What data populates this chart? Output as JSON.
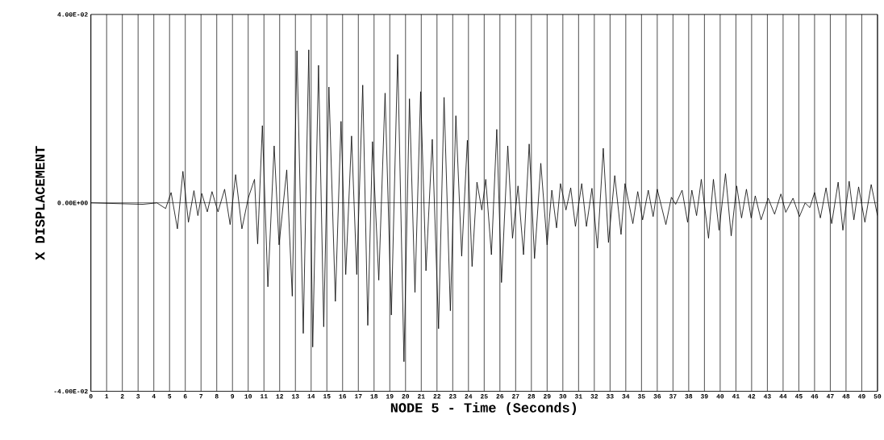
{
  "chart_data": {
    "type": "line",
    "xlabel": "NODE 5 - Time (Seconds)",
    "ylabel": "X DISPLACEMENT",
    "xlim": [
      0,
      50
    ],
    "ylim": [
      -0.04,
      0.04
    ],
    "xticks": [
      0,
      1,
      2,
      3,
      4,
      5,
      6,
      7,
      8,
      9,
      10,
      11,
      12,
      13,
      14,
      15,
      16,
      17,
      18,
      19,
      20,
      21,
      22,
      23,
      24,
      25,
      26,
      27,
      28,
      29,
      30,
      31,
      32,
      33,
      34,
      35,
      36,
      37,
      38,
      39,
      40,
      41,
      42,
      43,
      44,
      45,
      46,
      47,
      48,
      49,
      50
    ],
    "yticks": [
      {
        "value": -0.04,
        "label": "-4.00E-02"
      },
      {
        "value": 0,
        "label": "0.00E+00"
      },
      {
        "value": 0.04,
        "label": "4.00E-02"
      }
    ],
    "grid": "x",
    "line_style": "solid",
    "marker": "none",
    "ref_lines": [
      {
        "axis": "y",
        "value": 0,
        "color": "#000000"
      }
    ],
    "series": [
      {
        "color": "#000000",
        "x": [
          0,
          3.3,
          4.2,
          4.75,
          5.1,
          5.5,
          5.85,
          6.2,
          6.55,
          6.8,
          7.05,
          7.4,
          7.7,
          8.08,
          8.5,
          8.85,
          9.2,
          9.6,
          10.0,
          10.4,
          10.6,
          10.9,
          11.25,
          11.65,
          11.96,
          12.45,
          12.8,
          13.1,
          13.5,
          13.85,
          14.1,
          14.47,
          14.8,
          15.13,
          15.54,
          15.9,
          16.2,
          16.57,
          16.9,
          17.28,
          17.6,
          17.9,
          18.3,
          18.7,
          19.1,
          19.5,
          19.9,
          20.25,
          20.6,
          20.96,
          21.3,
          21.7,
          22.1,
          22.45,
          22.85,
          23.2,
          23.57,
          23.93,
          24.23,
          24.54,
          24.85,
          25.1,
          25.46,
          25.8,
          26.1,
          26.5,
          26.8,
          27.15,
          27.5,
          27.86,
          28.2,
          28.6,
          29.0,
          29.3,
          29.6,
          29.85,
          30.2,
          30.5,
          30.8,
          31.2,
          31.5,
          31.85,
          32.2,
          32.57,
          32.9,
          33.3,
          33.7,
          33.95,
          34.45,
          34.76,
          35.07,
          35.43,
          35.74,
          36.0,
          36.55,
          36.9,
          37.17,
          37.58,
          37.93,
          38.2,
          38.5,
          38.8,
          39.26,
          39.57,
          39.93,
          40.34,
          40.7,
          41.05,
          41.36,
          41.67,
          41.97,
          42.23,
          42.6,
          43.05,
          43.46,
          43.86,
          44.17,
          44.63,
          45.04,
          45.4,
          45.7,
          46.0,
          46.37,
          46.73,
          47.09,
          47.5,
          47.8,
          48.2,
          48.5,
          48.8,
          49.2,
          49.6,
          50.0
        ],
        "values": [
          0,
          -0.0003,
          0,
          -0.0012,
          0.0022,
          -0.0055,
          0.0067,
          -0.0041,
          0.0026,
          -0.0027,
          0.002,
          -0.0019,
          0.0024,
          -0.0019,
          0.0029,
          -0.0046,
          0.006,
          -0.0055,
          0.001,
          0.005,
          -0.0087,
          0.0164,
          -0.0178,
          0.0121,
          -0.0089,
          0.007,
          -0.0198,
          0.0323,
          -0.0277,
          0.0325,
          -0.0306,
          0.0292,
          -0.0263,
          0.0246,
          -0.0209,
          0.0173,
          -0.0152,
          0.0142,
          -0.0152,
          0.025,
          -0.026,
          0.013,
          -0.0164,
          0.0233,
          -0.0238,
          0.0315,
          -0.0337,
          0.0221,
          -0.019,
          0.0236,
          -0.0144,
          0.0135,
          -0.0267,
          0.0224,
          -0.0229,
          0.0185,
          -0.0113,
          0.0133,
          -0.0135,
          0.0044,
          -0.0015,
          0.005,
          -0.011,
          0.0156,
          -0.0169,
          0.0121,
          -0.0075,
          0.0036,
          -0.011,
          0.0125,
          -0.0118,
          0.0084,
          -0.0089,
          0.0027,
          -0.0053,
          0.0041,
          -0.0015,
          0.0032,
          -0.005,
          0.0041,
          -0.005,
          0.0031,
          -0.0096,
          0.0116,
          -0.0084,
          0.0058,
          -0.0067,
          0.0041,
          -0.0044,
          0.0024,
          -0.0036,
          0.0027,
          -0.0029,
          0.0029,
          -0.0046,
          0.0012,
          -0.0003,
          0.0027,
          -0.0041,
          0.0027,
          -0.0027,
          0.005,
          -0.0075,
          0.005,
          -0.0058,
          0.0062,
          -0.007,
          0.0036,
          -0.0032,
          0.0029,
          -0.0032,
          0.0015,
          -0.0036,
          0.001,
          -0.0024,
          0.0019,
          -0.002,
          0.001,
          -0.0029,
          0,
          -0.001,
          0.0022,
          -0.0032,
          0.0032,
          -0.0044,
          0.0044,
          -0.0058,
          0.0046,
          -0.0036,
          0.0034,
          -0.0041,
          0.0039,
          -0.0027
        ]
      }
    ]
  }
}
